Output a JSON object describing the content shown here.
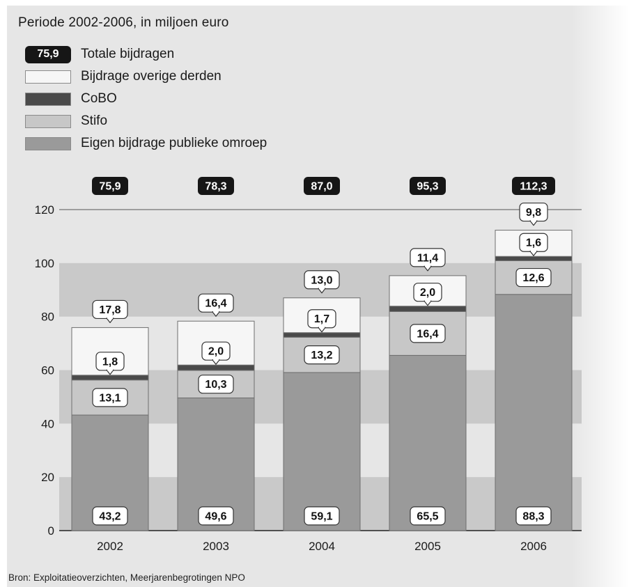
{
  "colors": {
    "eigen": "#9a9a9a",
    "stifo": "#c7c7c7",
    "cobo": "#4a4a4a",
    "overige": "#f6f6f6",
    "band_dark": "#c9c9c9",
    "badge": "#161616"
  },
  "legend": {
    "total_badge": "75,9",
    "items": [
      {
        "label": "Totale bijdragen"
      },
      {
        "label": "Bijdrage overige derden"
      },
      {
        "label": "CoBO"
      },
      {
        "label": "Stifo"
      },
      {
        "label": "Eigen bijdrage publieke omroep"
      }
    ]
  },
  "source": "Bron: Exploitatieoverzichten, Meerjarenbegrotingen NPO",
  "chart_data": {
    "type": "bar",
    "stacked": true,
    "title": "Periode 2002-2006, in miljoen euro",
    "categories": [
      "2002",
      "2003",
      "2004",
      "2005",
      "2006"
    ],
    "ylim": [
      0,
      120
    ],
    "yticks": [
      0,
      20,
      40,
      60,
      80,
      100,
      120
    ],
    "series": [
      {
        "name": "Eigen bijdrage publieke omroep",
        "values": [
          43.2,
          49.6,
          59.1,
          65.5,
          88.3
        ],
        "labels": [
          "43,2",
          "49,6",
          "59,1",
          "65,5",
          "88,3"
        ]
      },
      {
        "name": "Stifo",
        "values": [
          13.1,
          10.3,
          13.2,
          16.4,
          12.6
        ],
        "labels": [
          "13,1",
          "10,3",
          "13,2",
          "16,4",
          "12,6"
        ]
      },
      {
        "name": "CoBO",
        "values": [
          1.8,
          2.0,
          1.7,
          2.0,
          1.6
        ],
        "labels": [
          "1,8",
          "2,0",
          "1,7",
          "2,0",
          "1,6"
        ]
      },
      {
        "name": "Bijdrage overige derden",
        "values": [
          17.8,
          16.4,
          13.0,
          11.4,
          9.8
        ],
        "labels": [
          "17,8",
          "16,4",
          "13,0",
          "11,4",
          "9,8"
        ]
      }
    ],
    "totals": [
      75.9,
      78.3,
      87.0,
      95.3,
      112.3
    ],
    "total_labels": [
      "75,9",
      "78,3",
      "87,0",
      "95,3",
      "112,3"
    ]
  }
}
